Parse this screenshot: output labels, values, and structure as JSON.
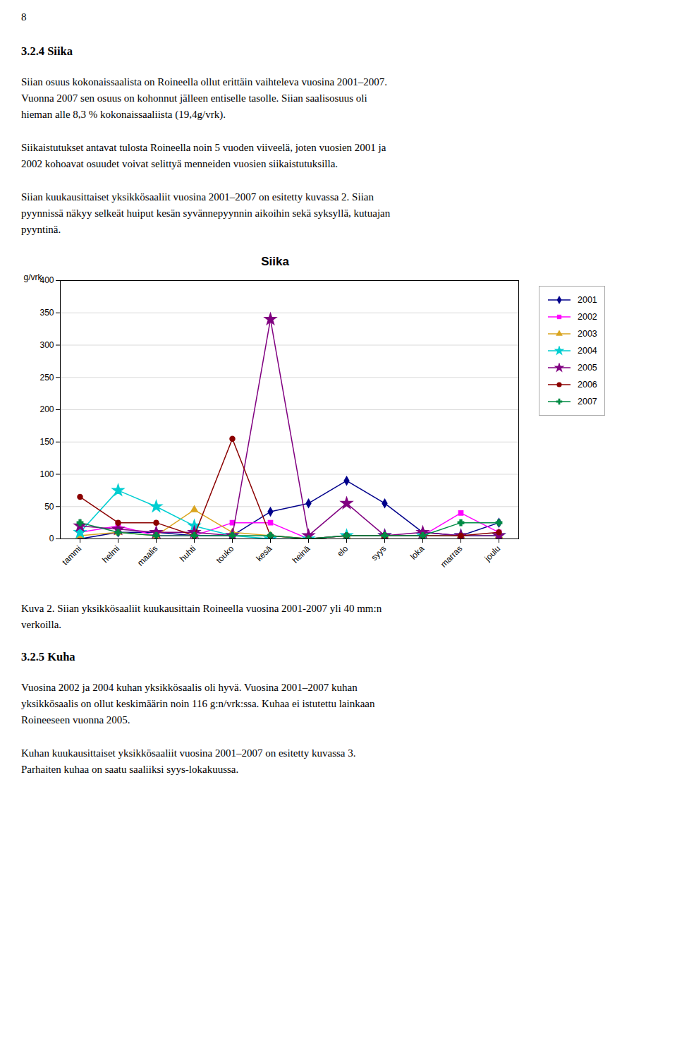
{
  "page_number": "8",
  "before_chart": [
    {
      "heading": "3.2.4 Siika"
    },
    {
      "paragraph": [
        "Siian osuus kokonaissaalista on Roineella ollut erittäin vaihteleva vuosina 2001–2007.",
        "Vuonna 2007 sen osuus on kohonnut jälleen entiselle tasolle. Siian saalisosuus oli",
        "hieman alle 8,3 % kokonaissaaliista (19,4g/vrk)."
      ]
    },
    {
      "paragraph": [
        "Siikaistutukset antavat tulosta Roineella noin 5 vuoden viiveelä, joten vuosien 2001 ja",
        "2002 kohoavat osuudet voivat selittyä menneiden vuosien siikaistutuksilla."
      ]
    },
    {
      "paragraph": [
        "Siian kuukausittaiset yksikkösaaliit vuosina 2001–2007 on esitetty kuvassa 2. Siian",
        "pyynnissä näkyy selkeät huiput kesän syvännepyynnin aikoihin sekä syksyllä, kutuajan",
        "pyyntinä."
      ]
    }
  ],
  "after_chart": [
    {
      "paragraph": [
        "Kuva 2. Siian yksikkösaaliit kuukausittain Roineella vuosina 2001-2007 yli 40 mm:n",
        "verkoilla."
      ]
    },
    {
      "heading": "3.2.5 Kuha"
    },
    {
      "paragraph": [
        "Vuosina 2002 ja 2004 kuhan yksikkösaalis oli hyvä. Vuosina 2001–2007 kuhan",
        "yksikkösaalis on ollut keskimäärin noin 116 g:n/vrk:ssa. Kuhaa ei istutettu lainkaan",
        "Roineeseen vuonna 2005."
      ]
    },
    {
      "paragraph": [
        "Kuhan kuukausittaiset yksikkösaaliit vuosina 2001–2007 on esitetty kuvassa 3.",
        "Parhaiten kuhaa on saatu saaliiksi syys-lokakuussa."
      ]
    }
  ],
  "chart_data": {
    "type": "line",
    "title": "Siika",
    "ylabel": "g/vrk",
    "categories": [
      "tammi",
      "helmi",
      "maalis",
      "huhti",
      "touko",
      "kesä",
      "heinä",
      "elo",
      "syys",
      "loka",
      "marras",
      "joulu"
    ],
    "series": [
      {
        "name": "2001",
        "color": "#00008B",
        "marker": "diamond",
        "values": [
          0,
          10,
          10,
          5,
          5,
          42,
          55,
          90,
          55,
          10,
          5,
          25
        ]
      },
      {
        "name": "2002",
        "color": "#FF00FF",
        "marker": "square",
        "values": [
          10,
          20,
          5,
          5,
          25,
          25,
          0,
          5,
          5,
          5,
          40,
          10
        ]
      },
      {
        "name": "2003",
        "color": "#DAA520",
        "marker": "triangle",
        "values": [
          5,
          10,
          5,
          45,
          10,
          5,
          0,
          5,
          5,
          5,
          5,
          5
        ]
      },
      {
        "name": "2004",
        "color": "#00CED1",
        "marker": "star",
        "values": [
          10,
          75,
          50,
          20,
          5,
          0,
          0,
          5,
          5,
          5,
          5,
          5
        ]
      },
      {
        "name": "2005",
        "color": "#800080",
        "marker": "star",
        "values": [
          20,
          15,
          10,
          10,
          5,
          340,
          5,
          55,
          5,
          10,
          5,
          5
        ]
      },
      {
        "name": "2006",
        "color": "#8B0000",
        "marker": "circle",
        "values": [
          65,
          25,
          25,
          5,
          155,
          5,
          0,
          5,
          5,
          5,
          5,
          10
        ]
      },
      {
        "name": "2007",
        "color": "#008B45",
        "marker": "plus",
        "values": [
          25,
          10,
          5,
          5,
          5,
          5,
          0,
          5,
          5,
          5,
          25,
          25
        ]
      }
    ],
    "ylim": [
      0,
      400
    ],
    "yticks": [
      0,
      50,
      100,
      150,
      200,
      250,
      300,
      350,
      400
    ],
    "grid": true,
    "legend": "right"
  }
}
